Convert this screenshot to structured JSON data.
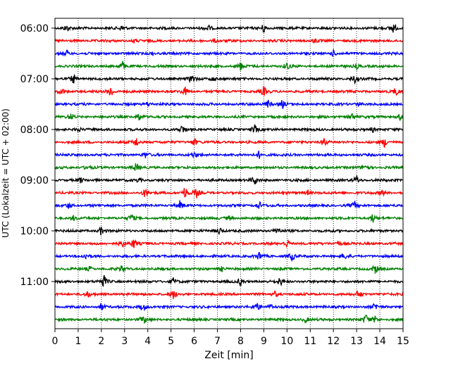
{
  "chart_data": {
    "type": "line",
    "title": "",
    "xlabel": "Zeit  [min]",
    "ylabel": "UTC (Lokalzeit = UTC + 02:00)",
    "xlim": [
      0,
      15
    ],
    "x_ticks": [
      0,
      1,
      2,
      3,
      4,
      5,
      6,
      7,
      8,
      9,
      10,
      11,
      12,
      13,
      14,
      15
    ],
    "y_ticks": [
      "06:00",
      "07:00",
      "08:00",
      "09:00",
      "10:00",
      "11:00"
    ],
    "grid": "vertical dotted",
    "row_interval_minutes": 15,
    "rows": [
      {
        "start": "06:00",
        "color": "#000000",
        "events": [
          [
            0.5,
            1.0
          ],
          [
            2.9,
            0.8
          ],
          [
            6.6,
            0.9
          ],
          [
            9.0,
            1.4
          ],
          [
            14.6,
            1.6
          ]
        ]
      },
      {
        "start": "06:15",
        "color": "#ff0000",
        "events": [
          [
            3.4,
            0.6
          ],
          [
            6.9,
            0.6
          ],
          [
            11.2,
            0.6
          ]
        ]
      },
      {
        "start": "06:30",
        "color": "#0000ff",
        "events": [
          [
            0.5,
            1.0
          ],
          [
            12.0,
            0.9
          ],
          [
            4.2,
            0.5
          ]
        ]
      },
      {
        "start": "06:45",
        "color": "#008000",
        "events": [
          [
            2.9,
            1.4
          ],
          [
            8.0,
            1.3
          ],
          [
            10.0,
            1.1
          ],
          [
            13.0,
            0.8
          ]
        ]
      },
      {
        "start": "07:00",
        "color": "#000000",
        "events": [
          [
            0.8,
            1.4
          ],
          [
            5.9,
            1.3
          ],
          [
            6.8,
            0.8
          ],
          [
            12.9,
            1.2
          ]
        ]
      },
      {
        "start": "07:15",
        "color": "#ff0000",
        "events": [
          [
            0.3,
            1.0
          ],
          [
            2.4,
            1.9
          ],
          [
            5.6,
            1.2
          ],
          [
            9.0,
            1.4
          ],
          [
            14.7,
            1.2
          ]
        ]
      },
      {
        "start": "07:30",
        "color": "#0000ff",
        "events": [
          [
            4.0,
            0.8
          ],
          [
            9.2,
            1.3
          ],
          [
            9.8,
            1.3
          ],
          [
            13.1,
            0.7
          ]
        ]
      },
      {
        "start": "07:45",
        "color": "#008000",
        "events": [
          [
            0.7,
            1.0
          ],
          [
            3.6,
            1.4
          ],
          [
            12.8,
            1.2
          ],
          [
            14.9,
            1.1
          ]
        ]
      },
      {
        "start": "08:00",
        "color": "#000000",
        "events": [
          [
            1.0,
            0.8
          ],
          [
            5.5,
            1.4
          ],
          [
            8.6,
            1.4
          ],
          [
            13.7,
            0.7
          ]
        ]
      },
      {
        "start": "08:15",
        "color": "#ff0000",
        "events": [
          [
            3.5,
            1.4
          ],
          [
            6.0,
            1.2
          ],
          [
            11.6,
            1.4
          ],
          [
            14.2,
            1.3
          ]
        ]
      },
      {
        "start": "08:30",
        "color": "#0000ff",
        "events": [
          [
            3.9,
            0.8
          ],
          [
            6.0,
            0.7
          ],
          [
            8.8,
            1.1
          ]
        ]
      },
      {
        "start": "08:45",
        "color": "#008000",
        "events": [
          [
            1.4,
            0.7
          ],
          [
            3.5,
            1.4
          ],
          [
            13.4,
            1.4
          ]
        ]
      },
      {
        "start": "09:00",
        "color": "#000000",
        "events": [
          [
            1.1,
            0.7
          ],
          [
            3.6,
            0.6
          ],
          [
            8.6,
            1.3
          ],
          [
            13.0,
            1.3
          ]
        ]
      },
      {
        "start": "09:15",
        "color": "#ff0000",
        "events": [
          [
            3.9,
            1.5
          ],
          [
            5.6,
            1.9
          ],
          [
            6.1,
            1.3
          ],
          [
            10.9,
            0.8
          ],
          [
            14.1,
            0.9
          ]
        ]
      },
      {
        "start": "09:30",
        "color": "#0000ff",
        "events": [
          [
            0.6,
            0.9
          ],
          [
            5.4,
            1.5
          ],
          [
            8.8,
            1.1
          ],
          [
            12.9,
            1.3
          ]
        ]
      },
      {
        "start": "09:45",
        "color": "#008000",
        "events": [
          [
            0.8,
            0.7
          ],
          [
            3.3,
            1.2
          ],
          [
            7.5,
            0.7
          ],
          [
            13.7,
            1.3
          ]
        ]
      },
      {
        "start": "10:00",
        "color": "#000000",
        "events": [
          [
            2.0,
            1.3
          ],
          [
            7.1,
            1.2
          ],
          [
            9.6,
            1.2
          ]
        ]
      },
      {
        "start": "10:15",
        "color": "#ff0000",
        "events": [
          [
            2.9,
            1.4
          ],
          [
            3.4,
            1.5
          ],
          [
            10.0,
            1.1
          ],
          [
            12.2,
            0.8
          ]
        ]
      },
      {
        "start": "10:30",
        "color": "#0000ff",
        "events": [
          [
            1.3,
            0.8
          ],
          [
            8.8,
            1.3
          ],
          [
            10.2,
            1.4
          ],
          [
            12.5,
            0.8
          ]
        ]
      },
      {
        "start": "10:45",
        "color": "#008000",
        "events": [
          [
            1.5,
            0.7
          ],
          [
            2.9,
            1.1
          ],
          [
            7.2,
            0.7
          ],
          [
            13.8,
            1.4
          ]
        ]
      },
      {
        "start": "11:00",
        "color": "#000000",
        "events": [
          [
            2.1,
            2.0
          ],
          [
            5.1,
            1.1
          ],
          [
            8.0,
            1.1
          ],
          [
            9.7,
            1.2
          ]
        ]
      },
      {
        "start": "11:15",
        "color": "#ff0000",
        "events": [
          [
            1.4,
            0.9
          ],
          [
            5.1,
            1.4
          ],
          [
            9.5,
            0.9
          ],
          [
            13.1,
            1.4
          ]
        ]
      },
      {
        "start": "11:30",
        "color": "#0000ff",
        "events": [
          [
            2.0,
            1.1
          ],
          [
            3.8,
            1.3
          ],
          [
            8.7,
            1.3
          ],
          [
            9.3,
            0.8
          ],
          [
            13.8,
            1.1
          ]
        ]
      },
      {
        "start": "11:45",
        "color": "#008000",
        "events": [
          [
            3.8,
            1.3
          ],
          [
            10.8,
            0.8
          ],
          [
            13.4,
            1.4
          ],
          [
            13.8,
            1.0
          ]
        ]
      }
    ]
  }
}
